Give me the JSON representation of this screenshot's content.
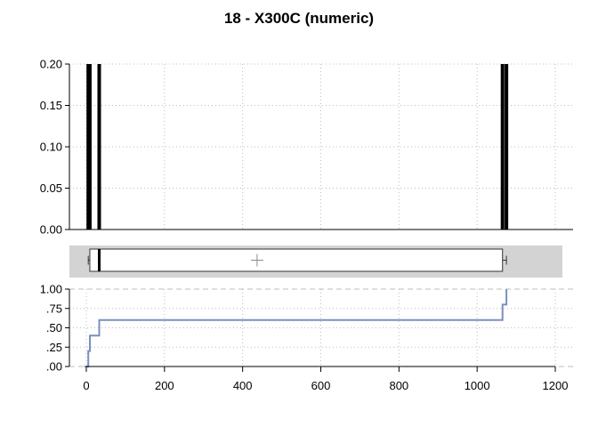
{
  "chart_data": {
    "title": "18 - X300C (numeric)",
    "x": {
      "range": [
        -40,
        1250
      ],
      "ticks": [
        0,
        200,
        400,
        600,
        800,
        1000,
        1200
      ],
      "tick_labels": [
        "0",
        "200",
        "400",
        "600",
        "800",
        "1000",
        "1200"
      ]
    },
    "panels": [
      {
        "type": "bar",
        "description_kind": "frequency spikes",
        "x": [
          5,
          9,
          33,
          1065,
          1075
        ],
        "values": [
          0.2,
          0.2,
          0.2,
          0.2,
          0.2
        ],
        "ylim": [
          0,
          0.2
        ],
        "y_ticks": [
          0,
          0.05,
          0.1,
          0.15,
          0.2
        ],
        "y_tick_labels": [
          "0.00",
          "0.05",
          "0.10",
          "0.15",
          "0.20"
        ],
        "grid": true,
        "color": "#000000"
      },
      {
        "type": "boxplot",
        "min": 5,
        "q1": 9,
        "median": 33,
        "q3": 1065,
        "max": 1075,
        "mean": 437,
        "background": "#d3d3d3"
      },
      {
        "type": "line",
        "step": true,
        "x": [
          -5,
          5,
          5,
          9,
          9,
          33,
          33,
          1065,
          1065,
          1075,
          1075
        ],
        "values": [
          0,
          0,
          0.2,
          0.2,
          0.4,
          0.4,
          0.6,
          0.6,
          0.8,
          0.8,
          1.0
        ],
        "ylim": [
          0,
          1
        ],
        "y_ticks": [
          0,
          0.25,
          0.5,
          0.75,
          1.0
        ],
        "y_tick_labels": [
          ".00",
          ".25",
          ".50",
          ".75",
          "1.00"
        ],
        "grid": true,
        "color": "#7b8fc0"
      }
    ]
  }
}
